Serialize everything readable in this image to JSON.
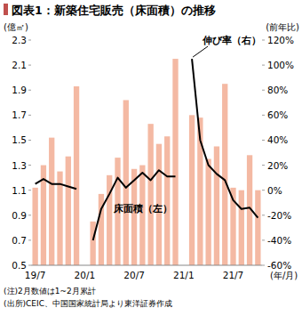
{
  "chart_data": {
    "type": "bar",
    "title": "図表1：新築住宅販売（床面積）の推移",
    "y_label": "(億㎡)",
    "y2_label": "(前年比)",
    "x_label": "(年/月)",
    "notes": [
      "(注)2月数値は1~2月累計",
      "(出所)CEIC、中国国家統計局より東洋証券作成"
    ],
    "categories": [
      "19/7",
      null,
      null,
      null,
      null,
      null,
      "20/1",
      null,
      null,
      null,
      null,
      null,
      "20/7",
      null,
      null,
      null,
      null,
      null,
      "21/1",
      null,
      null,
      null,
      null,
      null,
      "21/7",
      null,
      null,
      null
    ],
    "series": [
      {
        "name": "床面積（左）",
        "type": "bar",
        "color": "#f4b9a3",
        "values": [
          1.12,
          1.3,
          1.52,
          1.25,
          1.37,
          1.93,
          null,
          0.85,
          1.07,
          1.22,
          1.36,
          1.82,
          1.27,
          1.3,
          1.63,
          1.47,
          1.53,
          2.15,
          null,
          1.7,
          1.68,
          1.35,
          1.45,
          1.95,
          1.12,
          1.1,
          1.38,
          1.1
        ]
      },
      {
        "name": "伸び率（右）",
        "type": "line",
        "axis": "y2",
        "color": "#000000",
        "values": [
          5,
          9,
          5,
          5,
          3,
          1,
          null,
          -40,
          -15,
          -3,
          10,
          2,
          8,
          14,
          8,
          16,
          11,
          11,
          null,
          105,
          40,
          20,
          13,
          8,
          -8,
          -15,
          -14,
          -22
        ]
      }
    ],
    "ylim": [
      0.5,
      2.3
    ],
    "yticks": [
      0.5,
      0.7,
      0.9,
      1.1,
      1.3,
      1.5,
      1.7,
      1.9,
      2.1,
      2.3
    ],
    "y2lim": [
      -60,
      120
    ],
    "y2ticks": [
      {
        "value": -60,
        "label": "-60%"
      },
      {
        "value": -40,
        "label": "-40%"
      },
      {
        "value": -20,
        "label": "-20%"
      },
      {
        "value": 0,
        "label": "0%"
      },
      {
        "value": 20,
        "label": "20%"
      },
      {
        "value": 40,
        "label": "40%"
      },
      {
        "value": 60,
        "label": "60%"
      },
      {
        "value": 80,
        "label": "80%"
      },
      {
        "value": 100,
        "label": "100%"
      },
      {
        "value": 120,
        "label": "120%"
      }
    ],
    "grid": false
  }
}
